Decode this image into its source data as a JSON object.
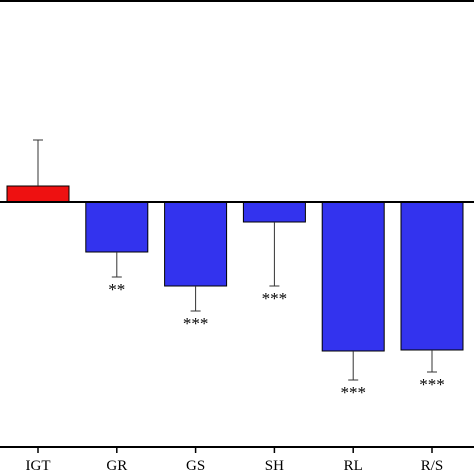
{
  "chart_data": {
    "type": "bar",
    "categories": [
      "IGT",
      "GR",
      "GS",
      "SH",
      "RL",
      "R/S"
    ],
    "values": [
      0.16,
      -0.5,
      -0.84,
      -0.2,
      -1.49,
      -1.48
    ],
    "errors": [
      0.46,
      0.25,
      0.25,
      0.64,
      0.29,
      0.22
    ],
    "error_direction": [
      "up",
      "down",
      "down",
      "down",
      "down",
      "down"
    ],
    "significance": [
      "",
      "**",
      "***",
      "***",
      "***",
      "***"
    ],
    "ylim": [
      -2.4,
      2.0
    ],
    "colors": {
      "positive": "#ee1111",
      "negative": "#3333ee",
      "edge": "#000000"
    },
    "legend": "none",
    "grid": false
  }
}
